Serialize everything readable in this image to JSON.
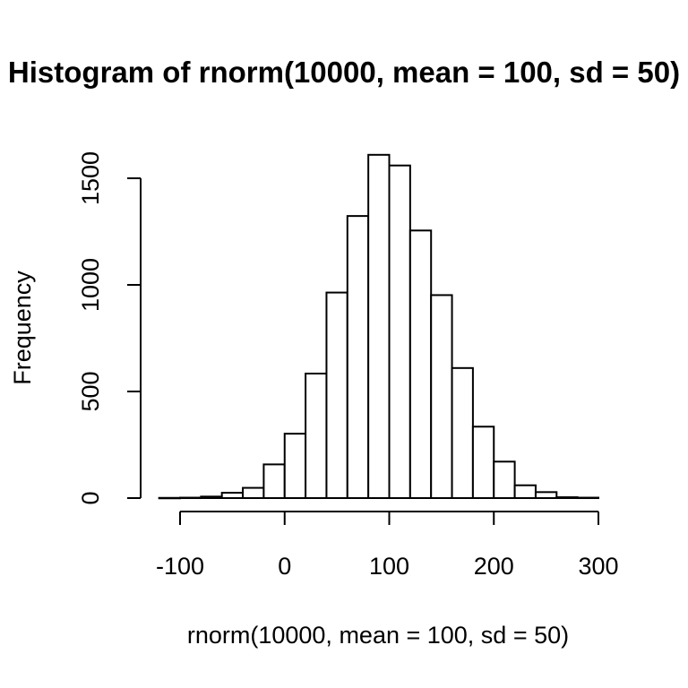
{
  "chart_data": {
    "type": "bar",
    "title": "Histogram of rnorm(10000, mean = 100, sd = 50)",
    "xlabel": "rnorm(10000, mean = 100, sd = 50)",
    "ylabel": "Frequency",
    "bin_width": 20,
    "bins": [
      {
        "x0": -120,
        "x1": -100,
        "count": 1
      },
      {
        "x0": -100,
        "x1": -80,
        "count": 2
      },
      {
        "x0": -80,
        "x1": -60,
        "count": 7
      },
      {
        "x0": -60,
        "x1": -40,
        "count": 25
      },
      {
        "x0": -40,
        "x1": -20,
        "count": 48
      },
      {
        "x0": -20,
        "x1": 0,
        "count": 158
      },
      {
        "x0": 0,
        "x1": 20,
        "count": 302
      },
      {
        "x0": 20,
        "x1": 40,
        "count": 584
      },
      {
        "x0": 40,
        "x1": 60,
        "count": 964
      },
      {
        "x0": 60,
        "x1": 80,
        "count": 1323
      },
      {
        "x0": 80,
        "x1": 100,
        "count": 1610
      },
      {
        "x0": 100,
        "x1": 120,
        "count": 1560
      },
      {
        "x0": 120,
        "x1": 140,
        "count": 1255
      },
      {
        "x0": 140,
        "x1": 160,
        "count": 952
      },
      {
        "x0": 160,
        "x1": 180,
        "count": 610
      },
      {
        "x0": 180,
        "x1": 200,
        "count": 335
      },
      {
        "x0": 200,
        "x1": 220,
        "count": 171
      },
      {
        "x0": 220,
        "x1": 240,
        "count": 60
      },
      {
        "x0": 240,
        "x1": 260,
        "count": 28
      },
      {
        "x0": 260,
        "x1": 280,
        "count": 4
      },
      {
        "x0": 280,
        "x1": 300,
        "count": 2
      }
    ],
    "xticks": [
      -100,
      0,
      100,
      200,
      300
    ],
    "yticks": [
      0,
      500,
      1000,
      1500
    ],
    "xlim": [
      -100,
      300
    ],
    "ylim": [
      0,
      1500
    ],
    "grid": false,
    "legend": "none"
  }
}
